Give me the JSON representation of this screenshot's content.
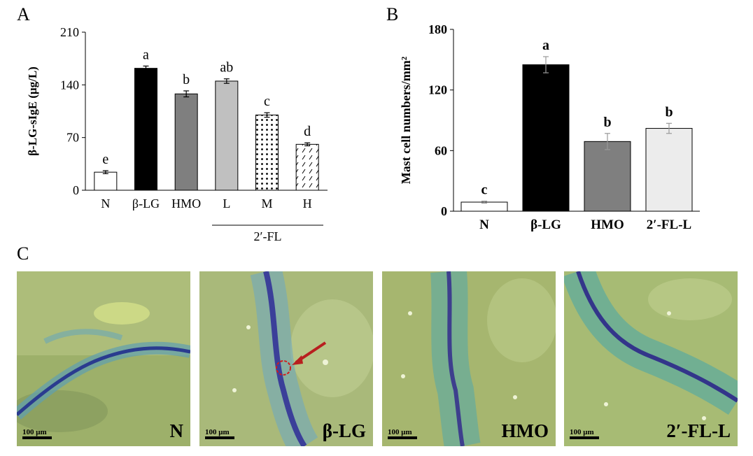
{
  "panels": {
    "a": "A",
    "b": "B",
    "c": "C"
  },
  "chart_data": [
    {
      "type": "bar",
      "ylabel": "β-LG-sIgE (μg/L)",
      "ylim": [
        0,
        210
      ],
      "yticks": [
        "0",
        "70",
        "140",
        "210"
      ],
      "categories": [
        "N",
        "β-LG",
        "HMO",
        "L",
        "M",
        "H"
      ],
      "values": [
        24,
        162,
        128,
        145,
        100,
        61
      ],
      "errors": [
        2,
        3,
        4,
        3,
        3,
        2
      ],
      "sig_letters": [
        "e",
        "a",
        "b",
        "ab",
        "c",
        "d"
      ],
      "fills": [
        "white",
        "#000000",
        "#7f7f7f",
        "#c0c0c0",
        "dots",
        "hatch"
      ],
      "group_label": "2′-FL"
    },
    {
      "type": "bar",
      "ylabel": "Mast cell numbers/mm²",
      "ylim": [
        0,
        180
      ],
      "yticks": [
        "0",
        "60",
        "120",
        "180"
      ],
      "categories": [
        "N",
        "β-LG",
        "HMO",
        "2′-FL-L"
      ],
      "values": [
        9,
        145,
        69,
        82
      ],
      "errors": [
        1,
        8,
        8,
        5
      ],
      "sig_letters": [
        "c",
        "a",
        "b",
        "b"
      ],
      "fills": [
        "white",
        "#000000",
        "#7f7f7f",
        "#ececec"
      ]
    }
  ],
  "micrographs": [
    {
      "label": "N",
      "scale": "100 μm"
    },
    {
      "label": "β-LG",
      "scale": "100 μm"
    },
    {
      "label": "HMO",
      "scale": "100 μm"
    },
    {
      "label": "2′-FL-L",
      "scale": "100 μm"
    }
  ]
}
